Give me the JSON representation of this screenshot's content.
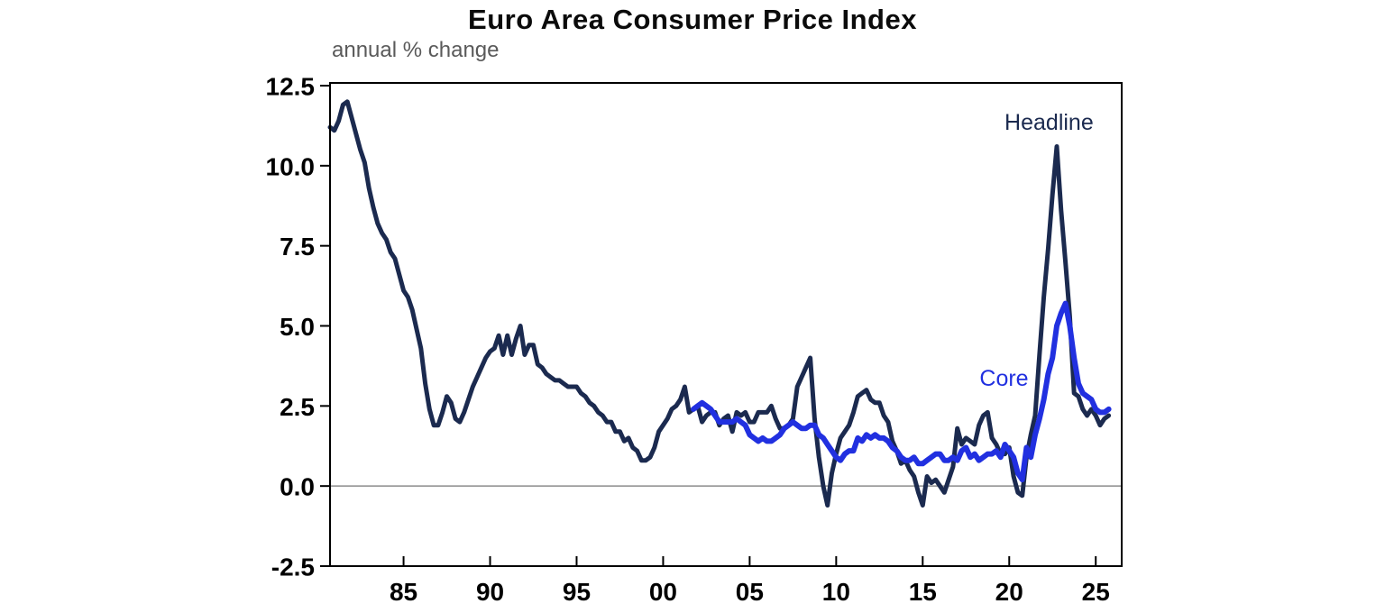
{
  "page": {
    "background": "#ffffff"
  },
  "chart_data": {
    "type": "line",
    "title": "Euro Area Consumer Price Index",
    "subtitle": "annual % change",
    "x_domain": [
      1980.75,
      2026.5
    ],
    "y_domain": [
      -2.5,
      12.5
    ],
    "grid": "zero-line-only",
    "legend_position": "inline-annotations",
    "frame_color": "#000000",
    "zero_line_color": "#8c8c8c",
    "x_ticks": [
      {
        "value": 1985,
        "label": "85"
      },
      {
        "value": 1990,
        "label": "90"
      },
      {
        "value": 1995,
        "label": "95"
      },
      {
        "value": 2000,
        "label": "00"
      },
      {
        "value": 2005,
        "label": "05"
      },
      {
        "value": 2010,
        "label": "10"
      },
      {
        "value": 2015,
        "label": "15"
      },
      {
        "value": 2020,
        "label": "20"
      },
      {
        "value": 2025,
        "label": "25"
      }
    ],
    "y_ticks": [
      {
        "value": -2.5,
        "label": "-2.5"
      },
      {
        "value": 0.0,
        "label": "0.0"
      },
      {
        "value": 2.5,
        "label": "2.5"
      },
      {
        "value": 5.0,
        "label": "5.0"
      },
      {
        "value": 7.5,
        "label": "7.5"
      },
      {
        "value": 10.0,
        "label": "10.0"
      },
      {
        "value": 12.5,
        "label": "12.5"
      }
    ],
    "annotations": [
      {
        "text": "Headline",
        "x": 2022.3,
        "y": 11.35,
        "color": "#1b2a4f"
      },
      {
        "text": "Core",
        "x": 2019.7,
        "y": 3.35,
        "color": "#2130e0"
      }
    ],
    "series": [
      {
        "name": "Headline",
        "color": "#1b2a4f",
        "line_width": 5,
        "points": [
          [
            1980.75,
            11.2
          ],
          [
            1981.0,
            11.1
          ],
          [
            1981.25,
            11.4
          ],
          [
            1981.5,
            11.9
          ],
          [
            1981.75,
            12.0
          ],
          [
            1982.0,
            11.5
          ],
          [
            1982.25,
            11.0
          ],
          [
            1982.5,
            10.5
          ],
          [
            1982.75,
            10.1
          ],
          [
            1983.0,
            9.3
          ],
          [
            1983.25,
            8.7
          ],
          [
            1983.5,
            8.2
          ],
          [
            1983.75,
            7.9
          ],
          [
            1984.0,
            7.7
          ],
          [
            1984.25,
            7.3
          ],
          [
            1984.5,
            7.1
          ],
          [
            1984.75,
            6.6
          ],
          [
            1985.0,
            6.1
          ],
          [
            1985.25,
            5.9
          ],
          [
            1985.5,
            5.5
          ],
          [
            1985.75,
            4.9
          ],
          [
            1986.0,
            4.3
          ],
          [
            1986.25,
            3.2
          ],
          [
            1986.5,
            2.4
          ],
          [
            1986.75,
            1.9
          ],
          [
            1987.0,
            1.9
          ],
          [
            1987.25,
            2.3
          ],
          [
            1987.5,
            2.8
          ],
          [
            1987.75,
            2.6
          ],
          [
            1988.0,
            2.1
          ],
          [
            1988.25,
            2.0
          ],
          [
            1988.5,
            2.3
          ],
          [
            1988.75,
            2.7
          ],
          [
            1989.0,
            3.1
          ],
          [
            1989.25,
            3.4
          ],
          [
            1989.5,
            3.7
          ],
          [
            1989.75,
            4.0
          ],
          [
            1990.0,
            4.2
          ],
          [
            1990.25,
            4.3
          ],
          [
            1990.5,
            4.7
          ],
          [
            1990.75,
            4.1
          ],
          [
            1991.0,
            4.7
          ],
          [
            1991.25,
            4.1
          ],
          [
            1991.5,
            4.6
          ],
          [
            1991.75,
            5.0
          ],
          [
            1992.0,
            4.1
          ],
          [
            1992.25,
            4.4
          ],
          [
            1992.5,
            4.4
          ],
          [
            1992.75,
            3.8
          ],
          [
            1993.0,
            3.7
          ],
          [
            1993.25,
            3.5
          ],
          [
            1993.5,
            3.4
          ],
          [
            1993.75,
            3.3
          ],
          [
            1994.0,
            3.3
          ],
          [
            1994.25,
            3.2
          ],
          [
            1994.5,
            3.1
          ],
          [
            1994.75,
            3.1
          ],
          [
            1995.0,
            3.1
          ],
          [
            1995.25,
            2.9
          ],
          [
            1995.5,
            2.8
          ],
          [
            1995.75,
            2.6
          ],
          [
            1996.0,
            2.5
          ],
          [
            1996.25,
            2.3
          ],
          [
            1996.5,
            2.2
          ],
          [
            1996.75,
            2.0
          ],
          [
            1997.0,
            2.0
          ],
          [
            1997.25,
            1.7
          ],
          [
            1997.5,
            1.7
          ],
          [
            1997.75,
            1.4
          ],
          [
            1998.0,
            1.5
          ],
          [
            1998.25,
            1.2
          ],
          [
            1998.5,
            1.1
          ],
          [
            1998.75,
            0.8
          ],
          [
            1999.0,
            0.8
          ],
          [
            1999.25,
            0.9
          ],
          [
            1999.5,
            1.2
          ],
          [
            1999.75,
            1.7
          ],
          [
            2000.0,
            1.9
          ],
          [
            2000.25,
            2.1
          ],
          [
            2000.5,
            2.4
          ],
          [
            2000.75,
            2.5
          ],
          [
            2001.0,
            2.7
          ],
          [
            2001.25,
            3.1
          ],
          [
            2001.5,
            2.3
          ],
          [
            2001.75,
            2.4
          ],
          [
            2002.0,
            2.5
          ],
          [
            2002.25,
            2.0
          ],
          [
            2002.5,
            2.2
          ],
          [
            2002.75,
            2.3
          ],
          [
            2003.0,
            2.3
          ],
          [
            2003.25,
            1.9
          ],
          [
            2003.5,
            2.1
          ],
          [
            2003.75,
            2.2
          ],
          [
            2004.0,
            1.7
          ],
          [
            2004.25,
            2.3
          ],
          [
            2004.5,
            2.2
          ],
          [
            2004.75,
            2.3
          ],
          [
            2005.0,
            2.0
          ],
          [
            2005.25,
            2.0
          ],
          [
            2005.5,
            2.3
          ],
          [
            2005.75,
            2.3
          ],
          [
            2006.0,
            2.3
          ],
          [
            2006.25,
            2.5
          ],
          [
            2006.5,
            2.1
          ],
          [
            2006.75,
            1.8
          ],
          [
            2007.0,
            1.8
          ],
          [
            2007.25,
            1.9
          ],
          [
            2007.5,
            2.1
          ],
          [
            2007.75,
            3.1
          ],
          [
            2008.0,
            3.4
          ],
          [
            2008.25,
            3.7
          ],
          [
            2008.5,
            4.0
          ],
          [
            2008.75,
            2.1
          ],
          [
            2009.0,
            0.9
          ],
          [
            2009.25,
            0.0
          ],
          [
            2009.5,
            -0.6
          ],
          [
            2009.75,
            0.4
          ],
          [
            2010.0,
            1.0
          ],
          [
            2010.25,
            1.5
          ],
          [
            2010.5,
            1.7
          ],
          [
            2010.75,
            1.9
          ],
          [
            2011.0,
            2.3
          ],
          [
            2011.25,
            2.8
          ],
          [
            2011.5,
            2.9
          ],
          [
            2011.75,
            3.0
          ],
          [
            2012.0,
            2.7
          ],
          [
            2012.25,
            2.6
          ],
          [
            2012.5,
            2.6
          ],
          [
            2012.75,
            2.2
          ],
          [
            2013.0,
            2.0
          ],
          [
            2013.25,
            1.4
          ],
          [
            2013.5,
            1.1
          ],
          [
            2013.75,
            0.7
          ],
          [
            2014.0,
            0.8
          ],
          [
            2014.25,
            0.5
          ],
          [
            2014.5,
            0.3
          ],
          [
            2014.75,
            -0.2
          ],
          [
            2015.0,
            -0.6
          ],
          [
            2015.25,
            0.3
          ],
          [
            2015.5,
            0.1
          ],
          [
            2015.75,
            0.2
          ],
          [
            2016.0,
            0.0
          ],
          [
            2016.25,
            -0.2
          ],
          [
            2016.5,
            0.2
          ],
          [
            2016.75,
            0.6
          ],
          [
            2017.0,
            1.8
          ],
          [
            2017.25,
            1.3
          ],
          [
            2017.5,
            1.5
          ],
          [
            2017.75,
            1.4
          ],
          [
            2018.0,
            1.3
          ],
          [
            2018.25,
            1.9
          ],
          [
            2018.5,
            2.2
          ],
          [
            2018.75,
            2.3
          ],
          [
            2019.0,
            1.5
          ],
          [
            2019.25,
            1.3
          ],
          [
            2019.5,
            1.0
          ],
          [
            2019.75,
            1.0
          ],
          [
            2020.0,
            1.2
          ],
          [
            2020.25,
            0.3
          ],
          [
            2020.5,
            -0.2
          ],
          [
            2020.75,
            -0.3
          ],
          [
            2021.0,
            0.9
          ],
          [
            2021.25,
            1.6
          ],
          [
            2021.5,
            2.2
          ],
          [
            2021.75,
            4.1
          ],
          [
            2022.0,
            5.9
          ],
          [
            2022.25,
            7.4
          ],
          [
            2022.5,
            9.1
          ],
          [
            2022.75,
            10.6
          ],
          [
            2023.0,
            8.6
          ],
          [
            2023.25,
            7.0
          ],
          [
            2023.5,
            5.3
          ],
          [
            2023.75,
            2.9
          ],
          [
            2024.0,
            2.8
          ],
          [
            2024.25,
            2.4
          ],
          [
            2024.5,
            2.2
          ],
          [
            2024.75,
            2.4
          ],
          [
            2025.0,
            2.2
          ],
          [
            2025.25,
            1.9
          ],
          [
            2025.5,
            2.1
          ],
          [
            2025.75,
            2.2
          ]
        ]
      },
      {
        "name": "Core",
        "color": "#2130e0",
        "line_width": 6,
        "points": [
          [
            2001.75,
            2.4
          ],
          [
            2002.0,
            2.5
          ],
          [
            2002.25,
            2.6
          ],
          [
            2002.5,
            2.5
          ],
          [
            2002.75,
            2.4
          ],
          [
            2003.0,
            2.2
          ],
          [
            2003.25,
            2.0
          ],
          [
            2003.5,
            2.0
          ],
          [
            2003.75,
            2.0
          ],
          [
            2004.0,
            2.0
          ],
          [
            2004.25,
            2.1
          ],
          [
            2004.5,
            2.0
          ],
          [
            2004.75,
            1.9
          ],
          [
            2005.0,
            1.6
          ],
          [
            2005.25,
            1.5
          ],
          [
            2005.5,
            1.4
          ],
          [
            2005.75,
            1.5
          ],
          [
            2006.0,
            1.4
          ],
          [
            2006.25,
            1.4
          ],
          [
            2006.5,
            1.5
          ],
          [
            2006.75,
            1.6
          ],
          [
            2007.0,
            1.8
          ],
          [
            2007.25,
            1.9
          ],
          [
            2007.5,
            2.0
          ],
          [
            2007.75,
            1.9
          ],
          [
            2008.0,
            1.8
          ],
          [
            2008.25,
            1.8
          ],
          [
            2008.5,
            1.9
          ],
          [
            2008.75,
            1.9
          ],
          [
            2009.0,
            1.6
          ],
          [
            2009.25,
            1.5
          ],
          [
            2009.5,
            1.3
          ],
          [
            2009.75,
            1.1
          ],
          [
            2010.0,
            0.9
          ],
          [
            2010.25,
            0.8
          ],
          [
            2010.5,
            1.0
          ],
          [
            2010.75,
            1.1
          ],
          [
            2011.0,
            1.1
          ],
          [
            2011.25,
            1.5
          ],
          [
            2011.5,
            1.4
          ],
          [
            2011.75,
            1.6
          ],
          [
            2012.0,
            1.5
          ],
          [
            2012.25,
            1.6
          ],
          [
            2012.5,
            1.5
          ],
          [
            2012.75,
            1.5
          ],
          [
            2013.0,
            1.4
          ],
          [
            2013.25,
            1.2
          ],
          [
            2013.5,
            1.1
          ],
          [
            2013.75,
            0.9
          ],
          [
            2014.0,
            0.8
          ],
          [
            2014.25,
            0.8
          ],
          [
            2014.5,
            0.9
          ],
          [
            2014.75,
            0.7
          ],
          [
            2015.0,
            0.7
          ],
          [
            2015.25,
            0.8
          ],
          [
            2015.5,
            0.9
          ],
          [
            2015.75,
            1.0
          ],
          [
            2016.0,
            1.0
          ],
          [
            2016.25,
            0.8
          ],
          [
            2016.5,
            0.8
          ],
          [
            2016.75,
            0.9
          ],
          [
            2017.0,
            0.8
          ],
          [
            2017.25,
            1.1
          ],
          [
            2017.5,
            1.2
          ],
          [
            2017.75,
            0.9
          ],
          [
            2018.0,
            1.0
          ],
          [
            2018.25,
            0.8
          ],
          [
            2018.5,
            0.9
          ],
          [
            2018.75,
            1.0
          ],
          [
            2019.0,
            1.0
          ],
          [
            2019.25,
            1.1
          ],
          [
            2019.5,
            0.9
          ],
          [
            2019.75,
            1.3
          ],
          [
            2020.0,
            1.1
          ],
          [
            2020.25,
            0.9
          ],
          [
            2020.5,
            0.4
          ],
          [
            2020.75,
            0.2
          ],
          [
            2021.0,
            1.2
          ],
          [
            2021.25,
            0.9
          ],
          [
            2021.5,
            1.6
          ],
          [
            2021.75,
            2.1
          ],
          [
            2022.0,
            2.7
          ],
          [
            2022.25,
            3.5
          ],
          [
            2022.5,
            4.0
          ],
          [
            2022.75,
            5.0
          ],
          [
            2023.0,
            5.4
          ],
          [
            2023.25,
            5.7
          ],
          [
            2023.5,
            5.0
          ],
          [
            2023.75,
            4.0
          ],
          [
            2024.0,
            3.2
          ],
          [
            2024.25,
            2.9
          ],
          [
            2024.5,
            2.8
          ],
          [
            2024.75,
            2.7
          ],
          [
            2025.0,
            2.4
          ],
          [
            2025.25,
            2.3
          ],
          [
            2025.5,
            2.3
          ],
          [
            2025.75,
            2.4
          ]
        ]
      }
    ]
  }
}
